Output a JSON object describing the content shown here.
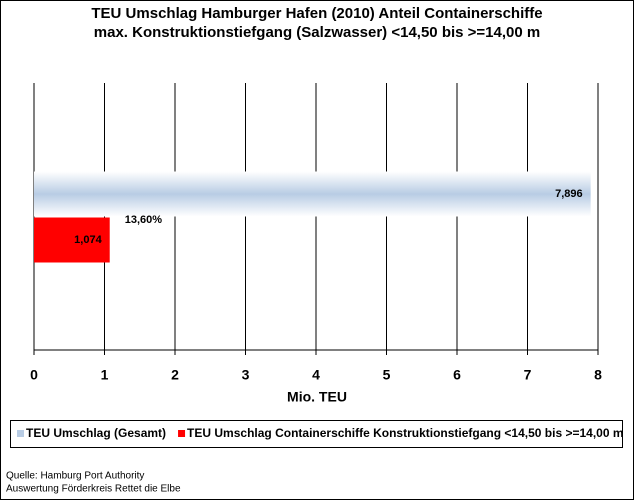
{
  "chart_data": {
    "type": "bar",
    "orientation": "horizontal",
    "title": "TEU Umschlag Hamburger Hafen (2010) Anteil Containerschiffe",
    "subtitle": "max. Konstruktionstiefgang (Salzwasser) <14,50 bis >=14,00 m",
    "categories": [
      null
    ],
    "series": [
      {
        "name": "TEU Umschlag (Gesamt)",
        "color": "#b8cce4",
        "values": [
          7.896
        ],
        "value_labels": [
          "7,896"
        ]
      },
      {
        "name": "TEU Umschlag Containerschiffe Konstruktionstiefgang <14,50 bis >=14,00 m",
        "color": "#ff0000",
        "values": [
          1.074
        ],
        "value_labels": [
          "1,074"
        ]
      }
    ],
    "annotations": [
      "13,60%"
    ],
    "xlabel": "Mio. TEU",
    "xlim": [
      0,
      8
    ],
    "xticks": [
      0,
      1,
      2,
      3,
      4,
      5,
      6,
      7,
      8
    ],
    "grid": true,
    "legend": "bottom",
    "notes": [
      "Quelle: Hamburg Port Authority",
      "Auswertung Förderkreis Rettet die Elbe"
    ]
  }
}
